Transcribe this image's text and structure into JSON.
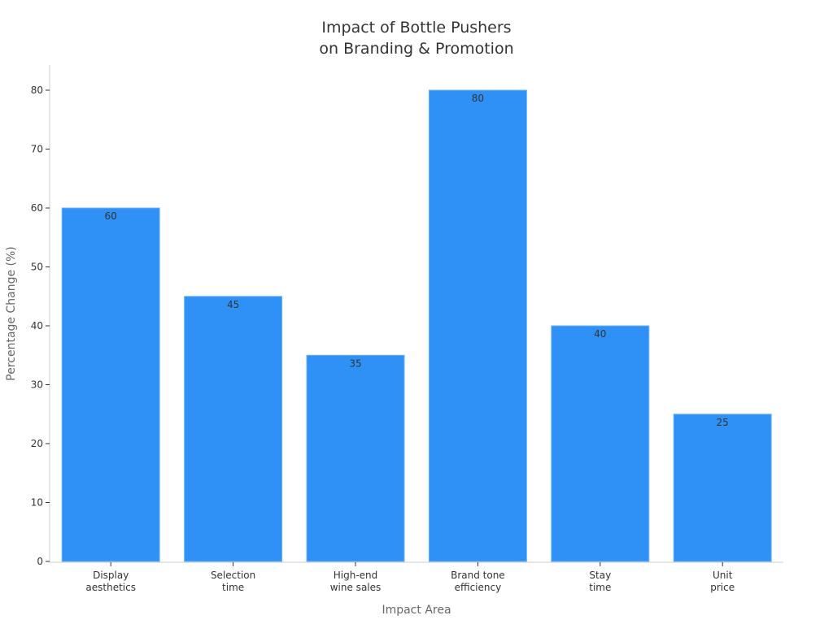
{
  "chart_data": {
    "type": "bar",
    "title_lines": [
      "Impact of Bottle Pushers",
      "on Branding & Promotion"
    ],
    "xlabel": "Impact Area",
    "ylabel": "Percentage Change (%)",
    "categories": [
      [
        "Display",
        "aesthetics"
      ],
      [
        "Selection",
        "time"
      ],
      [
        "High-end",
        "wine sales"
      ],
      [
        "Brand tone",
        "efficiency"
      ],
      [
        "Stay",
        "time"
      ],
      [
        "Unit",
        "price"
      ]
    ],
    "values": [
      60,
      45,
      35,
      80,
      40,
      25
    ],
    "ylim": [
      0,
      84
    ],
    "yticks": [
      0,
      10,
      20,
      30,
      40,
      50,
      60,
      70,
      80
    ],
    "grid": false,
    "data_labels": true,
    "bar_color": "#2f91f5"
  }
}
